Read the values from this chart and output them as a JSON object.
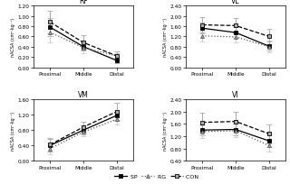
{
  "panels": [
    {
      "title": "RF",
      "ylabel": "nACSA (cm²·kg⁻¹)",
      "ylim": [
        0.0,
        1.2
      ],
      "yticks": [
        0.0,
        0.2,
        0.4,
        0.6,
        0.8,
        1.0,
        1.2
      ],
      "series": {
        "SP": {
          "y": [
            0.78,
            0.4,
            0.13
          ],
          "yerr": [
            0.18,
            0.08,
            0.05
          ]
        },
        "RG": {
          "y": [
            0.68,
            0.38,
            0.22
          ],
          "yerr": [
            0.2,
            0.1,
            0.06
          ]
        },
        "CON": {
          "y": [
            0.88,
            0.48,
            0.22
          ],
          "yerr": [
            0.22,
            0.14,
            0.08
          ]
        }
      }
    },
    {
      "title": "VL",
      "ylabel": "nACSA (cm²·kg⁻¹)",
      "ylim": [
        0.0,
        2.4
      ],
      "yticks": [
        0.0,
        0.4,
        0.8,
        1.2,
        1.6,
        2.0,
        2.4
      ],
      "series": {
        "SP": {
          "y": [
            1.52,
            1.35,
            0.82
          ],
          "yerr": [
            0.22,
            0.2,
            0.18
          ]
        },
        "RG": {
          "y": [
            1.22,
            1.18,
            0.8
          ],
          "yerr": [
            0.22,
            0.2,
            0.22
          ]
        },
        "CON": {
          "y": [
            1.65,
            1.62,
            1.2
          ],
          "yerr": [
            0.3,
            0.28,
            0.3
          ]
        }
      }
    },
    {
      "title": "VM",
      "ylabel": "nACSA (cm²·kg⁻¹)",
      "ylim": [
        0.0,
        1.6
      ],
      "yticks": [
        0.0,
        0.4,
        0.8,
        1.2,
        1.6
      ],
      "series": {
        "SP": {
          "y": [
            0.4,
            0.8,
            1.18
          ],
          "yerr": [
            0.16,
            0.12,
            0.15
          ]
        },
        "RG": {
          "y": [
            0.32,
            0.75,
            1.08
          ],
          "yerr": [
            0.14,
            0.12,
            0.14
          ]
        },
        "CON": {
          "y": [
            0.42,
            0.88,
            1.28
          ],
          "yerr": [
            0.18,
            0.14,
            0.22
          ]
        }
      }
    },
    {
      "title": "VI",
      "ylabel": "nACSA (cm²·kg⁻¹)",
      "ylim": [
        0.4,
        2.4
      ],
      "yticks": [
        0.4,
        0.8,
        1.2,
        1.6,
        2.0,
        2.4
      ],
      "series": {
        "SP": {
          "y": [
            1.4,
            1.42,
            1.05
          ],
          "yerr": [
            0.18,
            0.18,
            0.2
          ]
        },
        "RG": {
          "y": [
            1.35,
            1.38,
            0.9
          ],
          "yerr": [
            0.2,
            0.22,
            0.2
          ]
        },
        "CON": {
          "y": [
            1.65,
            1.68,
            1.28
          ],
          "yerr": [
            0.32,
            0.32,
            0.3
          ]
        }
      }
    }
  ],
  "series_order": [
    "SP",
    "RG",
    "CON"
  ],
  "line_colors": {
    "SP": "#000000",
    "RG": "#555555",
    "CON": "#000000"
  },
  "line_styles": {
    "SP": "-",
    "RG": ":",
    "CON": "--"
  },
  "marker_shapes": {
    "SP": "s",
    "RG": "^",
    "CON": "s"
  },
  "marker_facecolors": {
    "SP": "#000000",
    "RG": "#aaaaaa",
    "CON": "#aaaaaa"
  },
  "marker_edgecolors": {
    "SP": "#000000",
    "RG": "#555555",
    "CON": "#000000"
  },
  "ebar_colors": {
    "SP": "#aaaaaa",
    "RG": "#cccccc",
    "CON": "#aaaaaa"
  },
  "xtick_labels": [
    "Proximal",
    "Middle",
    "Distal"
  ],
  "legend_entries": [
    "SP",
    "RG",
    "CON"
  ]
}
